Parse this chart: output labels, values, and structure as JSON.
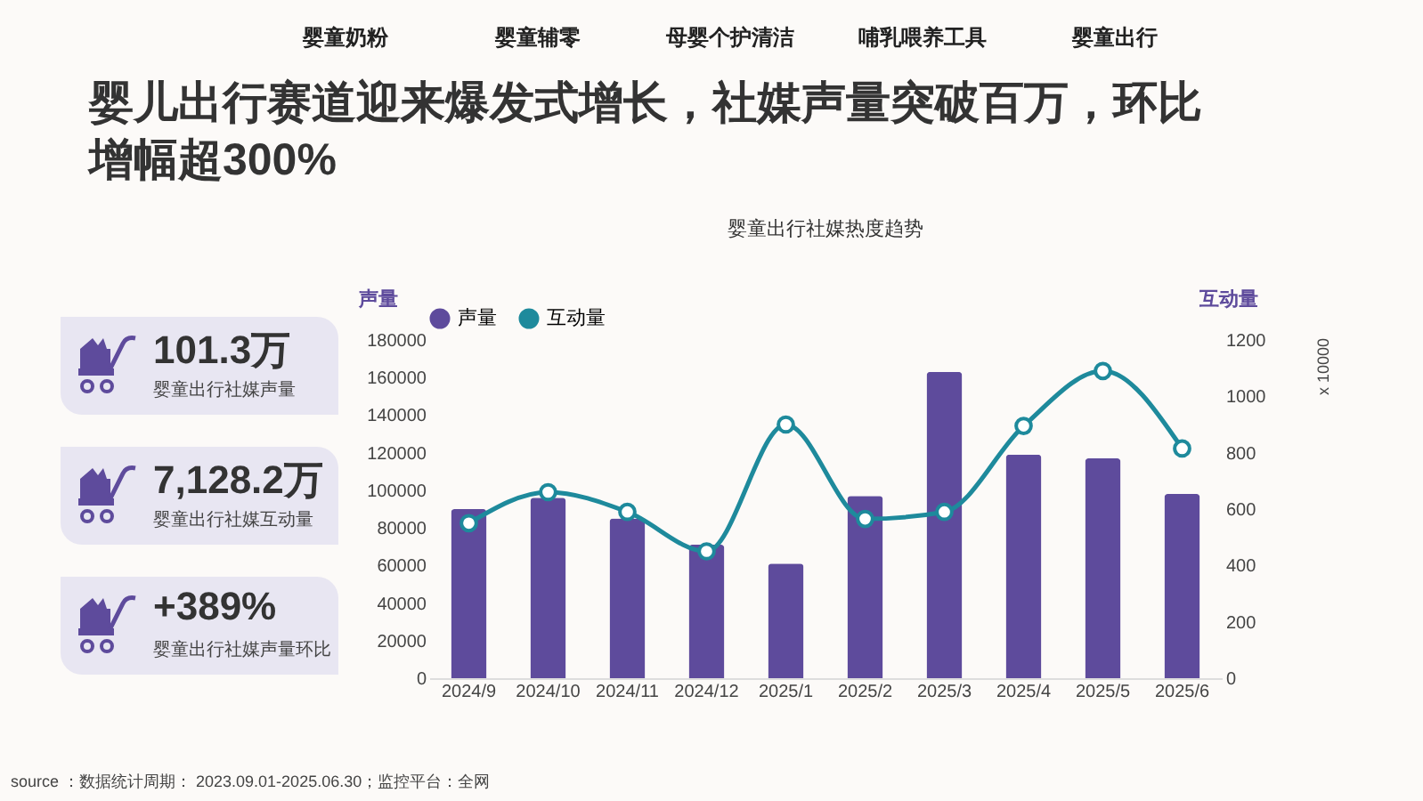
{
  "chart_data": [
    {
      "type": "other",
      "title": "婴儿出行赛道迎来爆发式增长，社媒声量突破百万，环比增幅超300%",
      "annotations": [
        "婴童奶粉",
        "婴童辅零",
        "母婴个护清洁",
        "哺乳喂养工具",
        "婴童出行"
      ]
    },
    {
      "type": "other",
      "annotations": [
        "101.3万",
        "婴童出行社媒声量",
        "7,128.2万",
        "婴童出行社媒互动量",
        "+389%",
        "婴童出行社媒声量环比"
      ]
    },
    {
      "type": "bar",
      "title": "婴童出行社媒热度趋势",
      "ylabel": "声量",
      "y2label": "互动量",
      "categories": [
        "2024/9",
        "2024/10",
        "2024/11",
        "2024/12",
        "2025/1",
        "2025/2",
        "2025/3",
        "2025/4",
        "2025/5",
        "2025/6"
      ],
      "series": [
        {
          "name": "声量",
          "type": "bar",
          "color": "#5e4b9c",
          "values": [
            90000,
            96000,
            85000,
            71000,
            61000,
            97000,
            163000,
            119000,
            117000,
            98000
          ]
        },
        {
          "name": "互动量",
          "type": "line",
          "axis": "y2",
          "color": "#1e8a9c",
          "values": [
            550,
            660,
            590,
            450,
            900,
            565,
            590,
            895,
            1090,
            815
          ]
        }
      ],
      "ylim": [
        0,
        180000
      ],
      "yticks": [
        0,
        20000,
        40000,
        60000,
        80000,
        100000,
        120000,
        140000,
        160000,
        180000
      ],
      "y2lim": [
        0,
        1200
      ],
      "y2ticks": [
        0,
        200,
        400,
        600,
        800,
        1000,
        1200
      ],
      "marker": "circle",
      "legend": "top",
      "annotations": [
        "x 10000",
        "source ：数据统计周期： 2023.09.01-2025.06.30；监控平台：全网"
      ]
    }
  ]
}
